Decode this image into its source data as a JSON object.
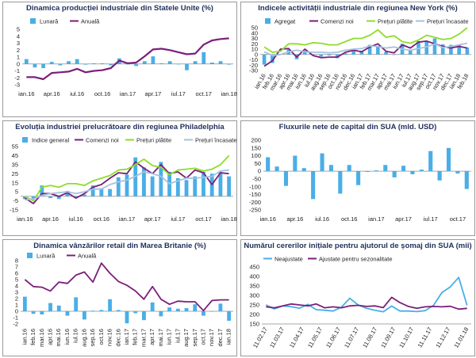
{
  "chart_data": [
    {
      "type": "bar",
      "title": "Dinamica producției industriale din Statele Unite (%)",
      "xlabel": "",
      "ylabel": "",
      "ylim": [
        -3,
        5
      ],
      "yticks": [
        -3,
        -2,
        -1,
        0,
        1,
        2,
        3,
        4,
        5
      ],
      "categories": [
        "ian.16",
        "feb.16",
        "mar.16",
        "apr.16",
        "mai.16",
        "iun.16",
        "iul.16",
        "aug.16",
        "sep.16",
        "oct.16",
        "nov.16",
        "dec.16",
        "ian.17",
        "feb.17",
        "mar.17",
        "apr.17",
        "mai.17",
        "iun.17",
        "iul.17",
        "aug.17",
        "sep.17",
        "oct.17",
        "nov.17",
        "dec.17",
        "ian.18"
      ],
      "xtick_labels": [
        "ian.16",
        "apr.16",
        "iul.16",
        "oct.16",
        "ian.17",
        "apr.17",
        "iul.17",
        "oct.17",
        "ian.18"
      ],
      "series": [
        {
          "name": "Lunară",
          "kind": "bar",
          "color": "#4aaee6",
          "values": [
            0.7,
            -0.5,
            -0.6,
            0.3,
            -0.2,
            0.4,
            0.7,
            -0.1,
            0.1,
            0.1,
            -0.2,
            0.8,
            0.0,
            -0.3,
            0.4,
            1.1,
            0.1,
            0.4,
            0.0,
            -0.9,
            0.4,
            1.7,
            0.2,
            0.4,
            -0.1
          ]
        },
        {
          "name": "Anuală",
          "kind": "line",
          "color": "#7b1f7a",
          "values": [
            -1.9,
            -1.9,
            -2.2,
            -1.3,
            -1.2,
            -1.1,
            -0.7,
            -1.2,
            -1.0,
            -0.9,
            -0.6,
            0.5,
            0.1,
            0.2,
            1.1,
            2.1,
            2.2,
            2.0,
            1.7,
            1.4,
            1.5,
            2.8,
            3.4,
            3.6,
            3.7
          ]
        }
      ]
    },
    {
      "type": "line",
      "title": "Indicele activității industriale din regiunea New York (%)",
      "xlabel": "",
      "ylabel": "",
      "ylim": [
        -30,
        50
      ],
      "yticks": [
        -30,
        -20,
        -10,
        0,
        10,
        20,
        30,
        40,
        50
      ],
      "categories": [
        "ian.16",
        "feb.16",
        "mar.16",
        "apr.16",
        "mai.16",
        "iun.16",
        "iul.16",
        "aug.16",
        "sep.16",
        "oct.16",
        "nov.16",
        "dec.16",
        "ian.17",
        "feb.17",
        "mar.17",
        "apr.17",
        "mai.17",
        "iun.17",
        "iul.17",
        "aug.17",
        "sep.17",
        "oct.17",
        "nov.17",
        "dec.17",
        "ian.18",
        "feb.18"
      ],
      "xtick_labels": [
        "ian.16",
        "feb.16",
        "mar.16",
        "apr.16",
        "mai.16",
        "iun.16",
        "iul.16",
        "aug.16",
        "sep.16",
        "oct.16",
        "nov.16",
        "dec.16",
        "ian.17",
        "feb.17",
        "mar.17",
        "apr.17",
        "mai.17",
        "iun.17",
        "iul.17",
        "aug.17",
        "sep.17",
        "oct.17",
        "nov.17",
        "dec.17",
        "ian.18",
        "feb.18"
      ],
      "series": [
        {
          "name": "Agregat",
          "kind": "bar",
          "color": "#4aaee6",
          "values": [
            -19,
            -16,
            1,
            9,
            -9,
            7,
            0,
            -4,
            -2,
            -7,
            2,
            9,
            7,
            18,
            16,
            5,
            -1,
            20,
            9,
            25,
            24,
            30,
            19,
            18,
            18,
            13
          ]
        },
        {
          "name": "Comenzi noi",
          "kind": "line",
          "color": "#7b1f7a",
          "values": [
            -22,
            -12,
            10,
            11,
            -5,
            10,
            -2,
            -6,
            -5,
            -5,
            4,
            8,
            5,
            14,
            20,
            6,
            3,
            18,
            12,
            23,
            25,
            20,
            15,
            12,
            15,
            12
          ]
        },
        {
          "name": "Prețuri plătite",
          "kind": "line",
          "color": "#8ddd2b",
          "values": [
            14,
            4,
            6,
            20,
            20,
            18,
            22,
            21,
            18,
            18,
            24,
            30,
            30,
            36,
            46,
            32,
            35,
            24,
            21,
            27,
            36,
            32,
            28,
            30,
            38,
            50
          ]
        },
        {
          "name": "Prețuri încasate",
          "kind": "line",
          "color": "#a6c2df",
          "values": [
            5,
            -2,
            0,
            5,
            8,
            5,
            4,
            4,
            3,
            4,
            8,
            10,
            11,
            16,
            15,
            12,
            14,
            10,
            8,
            11,
            14,
            20,
            13,
            15,
            18,
            21
          ]
        }
      ]
    },
    {
      "type": "line",
      "title": "Evoluția industriei prelucrătoare din regiunea Philadelphia",
      "xlabel": "",
      "ylabel": "",
      "ylim": [
        -15,
        55
      ],
      "yticks": [
        -15,
        -5,
        5,
        15,
        25,
        35,
        45,
        55
      ],
      "categories": [
        "ian.16",
        "feb.16",
        "mar.16",
        "apr.16",
        "mai.16",
        "iun.16",
        "iul.16",
        "aug.16",
        "sep.16",
        "oct.16",
        "nov.16",
        "dec.16",
        "ian.17",
        "feb.17",
        "mar.17",
        "apr.17",
        "mai.17",
        "iun.17",
        "iul.17",
        "aug.17",
        "sep.17",
        "oct.17",
        "nov.17",
        "dec.17",
        "ian.18"
      ],
      "xtick_labels": [
        "ian.16",
        "apr.16",
        "iul.16",
        "oct.16",
        "ian.17",
        "apr.17",
        "iul.17",
        "oct.17",
        "ian.18"
      ],
      "series": [
        {
          "name": "Indice general",
          "kind": "bar",
          "color": "#4aaee6",
          "values": [
            -3,
            -3,
            12,
            -2,
            -3,
            6,
            -2,
            2,
            12,
            9,
            8,
            21,
            24,
            43,
            32,
            22,
            38,
            27,
            20,
            18,
            22,
            27,
            25,
            27,
            22
          ]
        },
        {
          "name": "Comenzi noi",
          "kind": "line",
          "color": "#7b1f7a",
          "values": [
            -2,
            -8,
            3,
            3,
            0,
            4,
            -2,
            3,
            10,
            13,
            20,
            26,
            25,
            38,
            31,
            25,
            35,
            25,
            27,
            20,
            29,
            26,
            13,
            26,
            25
          ]
        },
        {
          "name": "Prețuri plătite",
          "kind": "line",
          "color": "#8ddd2b",
          "values": [
            0,
            -5,
            10,
            12,
            10,
            14,
            14,
            12,
            17,
            20,
            23,
            29,
            30,
            35,
            41,
            34,
            32,
            24,
            29,
            30,
            31,
            28,
            30,
            35,
            45
          ]
        },
        {
          "name": "Prețuri încasate",
          "kind": "line",
          "color": "#a6c2df",
          "values": [
            -4,
            -3,
            1,
            3,
            4,
            5,
            3,
            5,
            8,
            8,
            13,
            16,
            18,
            22,
            27,
            25,
            22,
            14,
            17,
            20,
            20,
            21,
            22,
            28,
            29
          ]
        }
      ]
    },
    {
      "type": "bar",
      "title": "Fluxurile nete de capital din SUA (mld. USD)",
      "xlabel": "",
      "ylabel": "",
      "ylim": [
        -250,
        200
      ],
      "yticks": [
        -250,
        -200,
        -150,
        -100,
        -50,
        0,
        50,
        100,
        150,
        200
      ],
      "categories": [
        "ian.16",
        "feb.16",
        "mar.16",
        "apr.16",
        "mai.16",
        "iun.16",
        "iul.16",
        "aug.16",
        "sep.16",
        "oct.16",
        "nov.16",
        "dec.16",
        "ian.17",
        "feb.17",
        "mar.17",
        "apr.17",
        "mai.17",
        "iun.17",
        "iul.17",
        "aug.17",
        "sep.17",
        "oct.17",
        "nov.17"
      ],
      "xtick_labels": [
        "ian.16",
        "apr.16",
        "iul.16",
        "oct.16",
        "ian.17",
        "apr.17",
        "iul.17",
        "oct.17"
      ],
      "series": [
        {
          "name": "Fluxuri nete",
          "kind": "bar",
          "color": "#4aaee6",
          "values": [
            90,
            30,
            -95,
            100,
            20,
            -180,
            115,
            40,
            -145,
            40,
            -90,
            -5,
            5,
            40,
            -40,
            35,
            -20,
            10,
            130,
            -60,
            150,
            -15,
            -115
          ]
        }
      ]
    },
    {
      "type": "bar",
      "title": "Dinamica vânzărilor retail din Marea Britanie (%)",
      "xlabel": "",
      "ylabel": "",
      "ylim": [
        -2,
        8
      ],
      "yticks": [
        -2,
        -1,
        0,
        1,
        2,
        3,
        4,
        5,
        6,
        7,
        8
      ],
      "categories": [
        "ian.16",
        "feb.16",
        "mar.16",
        "apr.16",
        "mai.16",
        "iun.16",
        "iul.16",
        "aug.16",
        "sep.16",
        "oct.16",
        "nov.16",
        "dec.16",
        "ian.17",
        "feb.17",
        "mar.17",
        "apr.17",
        "mai.17",
        "iun.17",
        "iul.17",
        "aug.17",
        "sep.17",
        "oct.17",
        "nov.17",
        "dec.17",
        "ian.18"
      ],
      "xtick_labels": [
        "ian.16",
        "feb.16",
        "mar.16",
        "apr.16",
        "mai.16",
        "iun.16",
        "iul.16",
        "aug.16",
        "sep.16",
        "oct.16",
        "nov.16",
        "dec.16",
        "ian.17",
        "feb.17",
        "mar.17",
        "apr.17",
        "mai.17",
        "iun.17",
        "iul.17",
        "aug.17",
        "sep.17",
        "oct.17",
        "nov.17",
        "dec.17",
        "ian.18"
      ],
      "series": [
        {
          "name": "Lunară",
          "kind": "bar",
          "color": "#4aaee6",
          "values": [
            2.3,
            -0.4,
            -0.5,
            1.3,
            0.9,
            -0.7,
            2.2,
            -1.3,
            0.1,
            0.2,
            1.9,
            0.2,
            -1.9,
            -0.3,
            -1.4,
            1.4,
            -0.8,
            0.6,
            0.4,
            0.5,
            1.1,
            -0.7,
            0.0,
            1.2,
            -1.5
          ]
        },
        {
          "name": "Anuală",
          "kind": "line",
          "color": "#7b1f7a",
          "values": [
            5.0,
            3.9,
            3.8,
            3.2,
            4.6,
            4.4,
            5.7,
            6.2,
            4.6,
            7.6,
            6.0,
            4.7,
            4.1,
            3.2,
            1.9,
            3.9,
            1.9,
            1.1,
            1.6,
            1.5,
            1.5,
            0.1,
            1.7,
            1.8,
            1.8
          ]
        }
      ]
    },
    {
      "type": "line",
      "title": "Numărul cererilor inițiale pentru ajutorul de șomaj din SUA (mii)",
      "xlabel": "",
      "ylabel": "",
      "ylim": [
        150,
        450
      ],
      "yticks": [
        150,
        200,
        250,
        300,
        350,
        400,
        450
      ],
      "categories": [
        "11.02.17",
        "25.02.17",
        "11.03.17",
        "25.03.17",
        "08.04.17",
        "22.04.17",
        "06.05.17",
        "20.05.17",
        "03.06.17",
        "17.06.17",
        "01.07.17",
        "15.07.17",
        "29.07.17",
        "12.08.17",
        "26.08.17",
        "09.09.17",
        "23.09.17",
        "07.10.17",
        "21.10.17",
        "04.11.17",
        "18.11.17",
        "02.12.17",
        "16.12.17",
        "30.12.17",
        "13.01.18"
      ],
      "xtick_labels": [
        "11.02.17",
        "11.03.17",
        "11.04.17",
        "11.05.17",
        "11.06.17",
        "11.07.17",
        "11.08.17",
        "11.09.17",
        "11.10.17",
        "11.11.17",
        "11.12.17",
        "11.01.18"
      ],
      "series": [
        {
          "name": "Neajustate",
          "kind": "line",
          "color": "#4aaee6",
          "values": [
            250,
            229,
            245,
            241,
            233,
            253,
            225,
            222,
            218,
            238,
            285,
            250,
            232,
            222,
            214,
            244,
            218,
            218,
            215,
            220,
            248,
            315,
            345,
            395,
            248
          ]
        },
        {
          "name": "Ajustate pentru sezonalitate",
          "kind": "line",
          "color": "#7b1f7a",
          "values": [
            240,
            235,
            245,
            255,
            250,
            245,
            255,
            235,
            240,
            235,
            245,
            248,
            242,
            245,
            236,
            290,
            262,
            242,
            232,
            240,
            242,
            240,
            243,
            228,
            232
          ]
        }
      ]
    }
  ]
}
